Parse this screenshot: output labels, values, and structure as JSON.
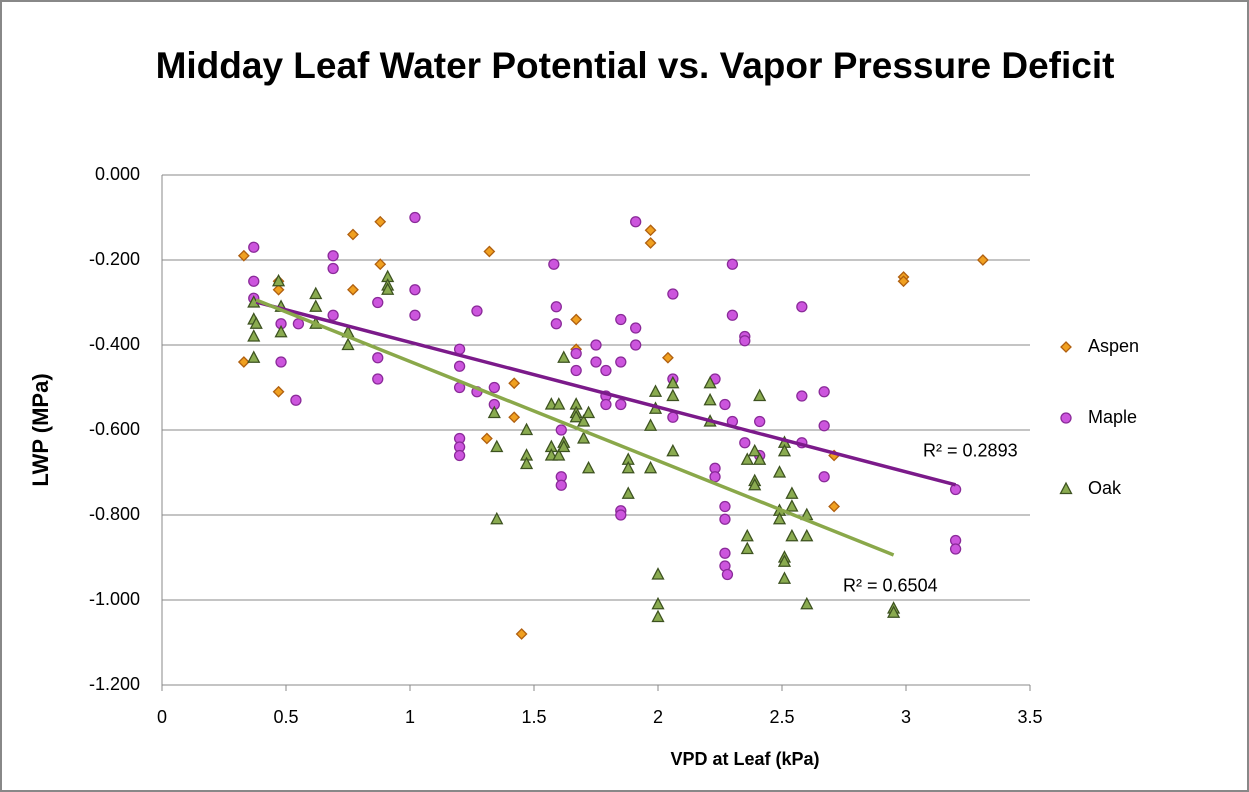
{
  "chart_data": {
    "type": "scatter",
    "title": "Midday Leaf Water Potential vs. Vapor Pressure Deficit",
    "x_label": "VPD at Leaf (kPa)",
    "y_label": "LWP (MPa)",
    "xlim": [
      0,
      3.5
    ],
    "xticks": [
      0,
      0.5,
      1,
      1.5,
      2,
      2.5,
      3,
      3.5
    ],
    "ylim": [
      -1.2,
      0
    ],
    "yticks": [
      {
        "value": 0,
        "label": "0.000"
      },
      {
        "value": -0.2,
        "label": "-0.200"
      },
      {
        "value": -0.4,
        "label": "-0.400"
      },
      {
        "value": -0.6,
        "label": "-0.600"
      },
      {
        "value": -0.8,
        "label": "-0.800"
      },
      {
        "value": -1.0,
        "label": "-1.000"
      },
      {
        "value": -1.2,
        "label": "-1.200"
      }
    ],
    "grid": true,
    "legend": "right",
    "series": [
      {
        "name": "Aspen",
        "color": "#f0a020",
        "stroke": "#b06010",
        "marker": "diamond",
        "x": [
          0.33,
          0.47,
          0.47,
          0.33,
          0.47,
          0.77,
          0.77,
          0.88,
          0.88,
          1.32,
          1.31,
          1.42,
          1.42,
          1.45,
          1.67,
          1.67,
          1.97,
          1.97,
          2.04,
          2.71,
          2.71,
          2.99,
          2.99,
          3.31
        ],
        "values": [
          -0.19,
          -0.25,
          -0.27,
          -0.44,
          -0.51,
          -0.14,
          -0.27,
          -0.11,
          -0.21,
          -0.18,
          -0.62,
          -0.49,
          -0.57,
          -1.08,
          -0.34,
          -0.41,
          -0.13,
          -0.16,
          -0.43,
          -0.66,
          -0.78,
          -0.24,
          -0.25,
          -0.2
        ]
      },
      {
        "name": "Maple",
        "color": "#cc55dd",
        "stroke": "#8a2a99",
        "marker": "circle",
        "x": [
          0.37,
          0.37,
          0.37,
          0.48,
          0.48,
          0.55,
          0.54,
          0.69,
          0.69,
          0.69,
          0.87,
          0.87,
          0.87,
          1.02,
          1.02,
          1.02,
          1.2,
          1.2,
          1.2,
          1.2,
          1.2,
          1.2,
          1.27,
          1.27,
          1.34,
          1.34,
          1.58,
          1.59,
          1.59,
          1.61,
          1.61,
          1.61,
          1.67,
          1.67,
          1.75,
          1.75,
          1.79,
          1.79,
          1.79,
          1.85,
          1.85,
          1.85,
          1.85,
          1.85,
          1.91,
          1.91,
          1.91,
          2.06,
          2.06,
          2.06,
          2.23,
          2.23,
          2.23,
          2.27,
          2.27,
          2.27,
          2.27,
          2.27,
          2.28,
          2.3,
          2.3,
          2.3,
          2.35,
          2.35,
          2.35,
          2.41,
          2.41,
          2.58,
          2.58,
          2.58,
          2.67,
          2.67,
          2.67,
          3.2,
          3.2,
          3.2
        ],
        "values": [
          -0.17,
          -0.25,
          -0.29,
          -0.35,
          -0.44,
          -0.35,
          -0.53,
          -0.19,
          -0.22,
          -0.33,
          -0.3,
          -0.43,
          -0.48,
          -0.1,
          -0.27,
          -0.33,
          -0.41,
          -0.45,
          -0.5,
          -0.62,
          -0.64,
          -0.66,
          -0.32,
          -0.51,
          -0.5,
          -0.54,
          -0.21,
          -0.31,
          -0.35,
          -0.6,
          -0.71,
          -0.73,
          -0.46,
          -0.42,
          -0.4,
          -0.44,
          -0.46,
          -0.52,
          -0.54,
          -0.34,
          -0.44,
          -0.54,
          -0.79,
          -0.8,
          -0.11,
          -0.36,
          -0.4,
          -0.28,
          -0.48,
          -0.57,
          -0.48,
          -0.69,
          -0.71,
          -0.54,
          -0.78,
          -0.81,
          -0.89,
          -0.92,
          -0.94,
          -0.21,
          -0.33,
          -0.58,
          -0.38,
          -0.39,
          -0.63,
          -0.58,
          -0.66,
          -0.31,
          -0.52,
          -0.63,
          -0.51,
          -0.59,
          -0.71,
          -0.74,
          -0.86,
          -0.88
        ],
        "trendline": {
          "color": "#7b1a8a",
          "x": [
            0.38,
            3.2
          ],
          "y": [
            -0.299,
            -0.729
          ],
          "label": "R² = 0.2893"
        }
      },
      {
        "name": "Oak",
        "color": "#8aab50",
        "stroke": "#3d5220",
        "marker": "triangle",
        "x": [
          0.37,
          0.37,
          0.37,
          0.37,
          0.38,
          0.47,
          0.48,
          0.48,
          0.62,
          0.62,
          0.62,
          0.75,
          0.75,
          0.91,
          0.91,
          0.91,
          1.34,
          1.35,
          1.35,
          1.47,
          1.47,
          1.47,
          1.57,
          1.57,
          1.57,
          1.6,
          1.6,
          1.62,
          1.62,
          1.62,
          1.67,
          1.67,
          1.67,
          1.7,
          1.7,
          1.72,
          1.72,
          1.88,
          1.88,
          1.88,
          1.97,
          1.97,
          1.99,
          1.99,
          2.0,
          2.0,
          2.0,
          2.06,
          2.06,
          2.06,
          2.21,
          2.21,
          2.21,
          2.36,
          2.36,
          2.36,
          2.39,
          2.39,
          2.39,
          2.41,
          2.41,
          2.49,
          2.49,
          2.49,
          2.51,
          2.51,
          2.51,
          2.51,
          2.51,
          2.54,
          2.54,
          2.54,
          2.6,
          2.6,
          2.6,
          2.95,
          2.95
        ],
        "values": [
          -0.3,
          -0.34,
          -0.38,
          -0.43,
          -0.35,
          -0.25,
          -0.31,
          -0.37,
          -0.28,
          -0.31,
          -0.35,
          -0.37,
          -0.4,
          -0.24,
          -0.26,
          -0.27,
          -0.56,
          -0.64,
          -0.81,
          -0.6,
          -0.66,
          -0.68,
          -0.54,
          -0.64,
          -0.66,
          -0.54,
          -0.66,
          -0.43,
          -0.63,
          -0.64,
          -0.54,
          -0.56,
          -0.57,
          -0.58,
          -0.62,
          -0.56,
          -0.69,
          -0.67,
          -0.69,
          -0.75,
          -0.59,
          -0.69,
          -0.51,
          -0.55,
          -0.94,
          -1.01,
          -1.04,
          -0.49,
          -0.52,
          -0.65,
          -0.49,
          -0.53,
          -0.58,
          -0.67,
          -0.85,
          -0.88,
          -0.65,
          -0.72,
          -0.73,
          -0.52,
          -0.67,
          -0.7,
          -0.79,
          -0.81,
          -0.63,
          -0.65,
          -0.9,
          -0.91,
          -0.95,
          -0.75,
          -0.78,
          -0.85,
          -0.8,
          -0.85,
          -1.01,
          -1.02,
          -1.03
        ],
        "trendline": {
          "color": "#8aa84a",
          "x": [
            0.38,
            2.95
          ],
          "y": [
            -0.294,
            -0.894
          ],
          "label": "R² = 0.6504"
        }
      }
    ]
  }
}
